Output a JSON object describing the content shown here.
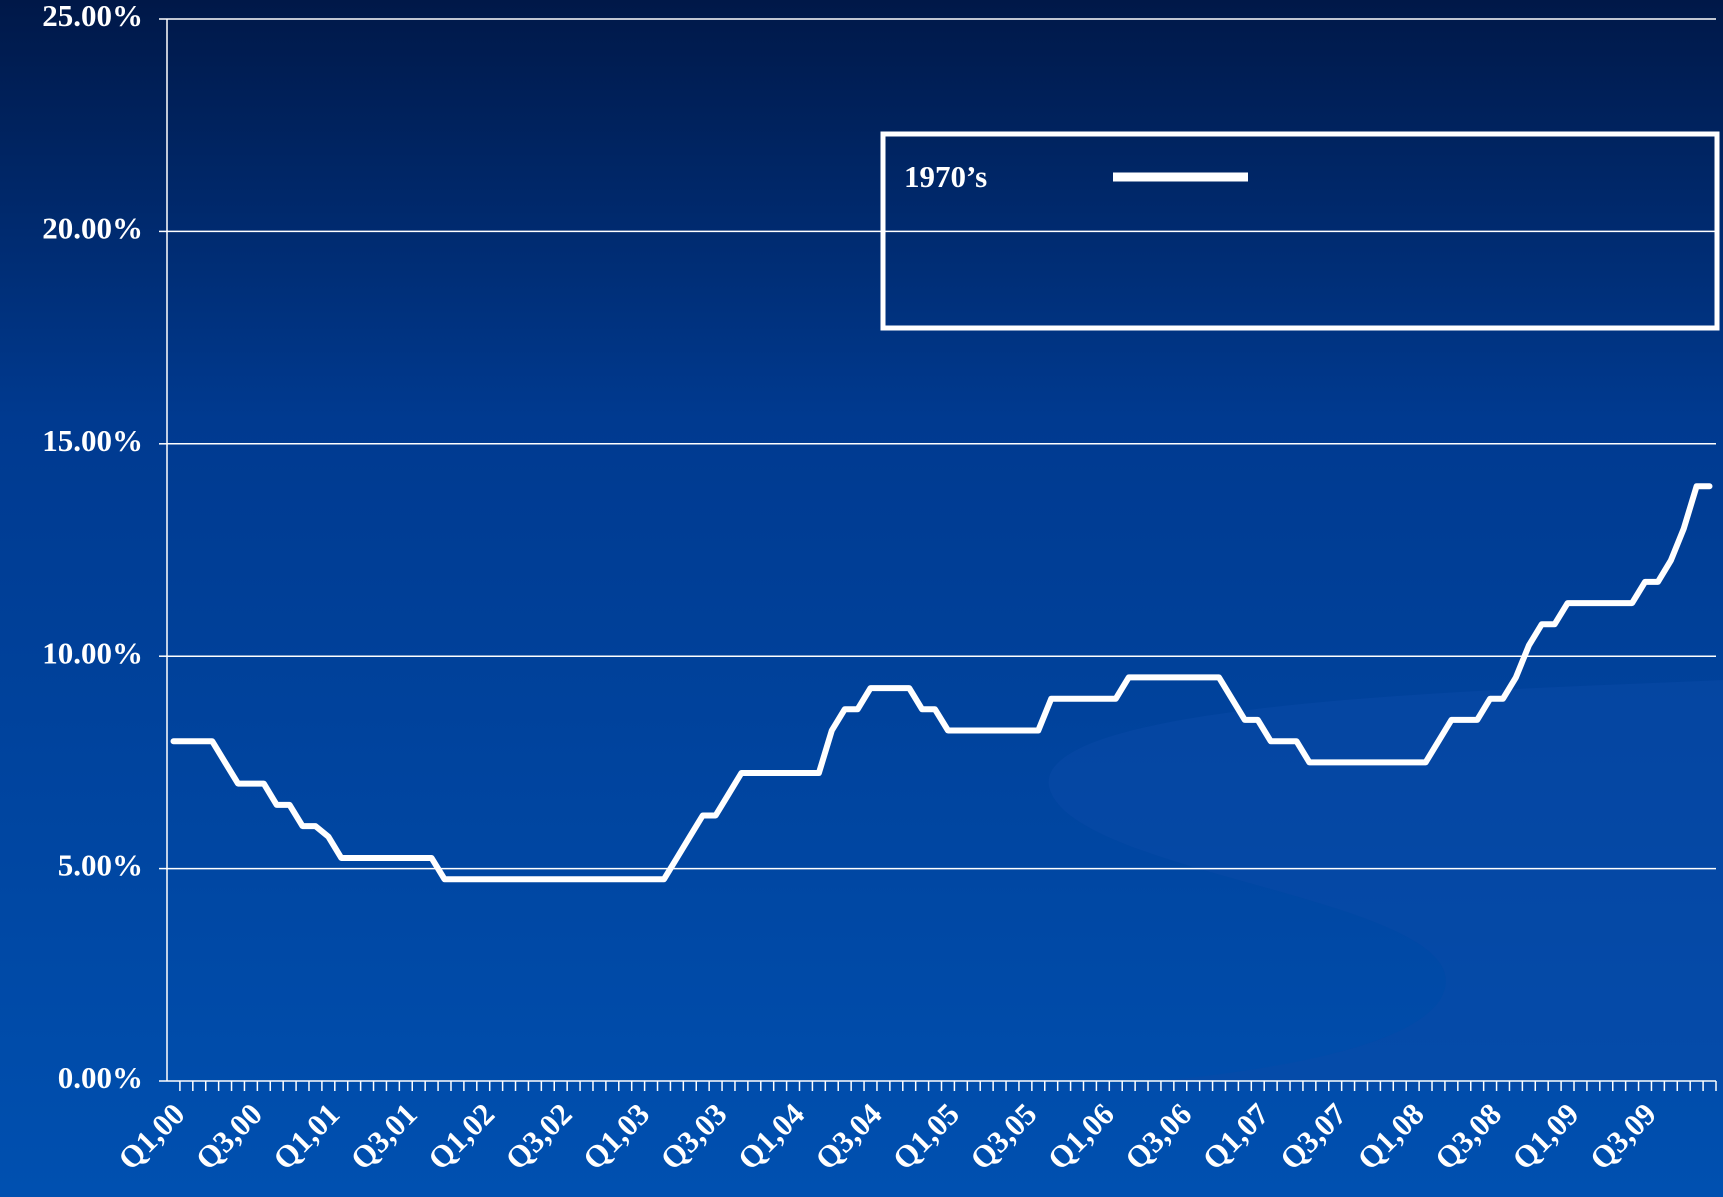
{
  "chart_data": {
    "type": "line",
    "categories": [
      "Q1,00",
      null,
      null,
      null,
      null,
      null,
      "Q3,00",
      null,
      null,
      null,
      null,
      null,
      "Q1,01",
      null,
      null,
      null,
      null,
      null,
      "Q3,01",
      null,
      null,
      null,
      null,
      null,
      "Q1,02",
      null,
      null,
      null,
      null,
      null,
      "Q3,02",
      null,
      null,
      null,
      null,
      null,
      "Q1,03",
      null,
      null,
      null,
      null,
      null,
      "Q3,03",
      null,
      null,
      null,
      null,
      null,
      "Q1,04",
      null,
      null,
      null,
      null,
      null,
      "Q3,04",
      null,
      null,
      null,
      null,
      null,
      "Q1,05",
      null,
      null,
      null,
      null,
      null,
      "Q3,05",
      null,
      null,
      null,
      null,
      null,
      "Q1,06",
      null,
      null,
      null,
      null,
      null,
      "Q3,06",
      null,
      null,
      null,
      null,
      null,
      "Q1,07",
      null,
      null,
      null,
      null,
      null,
      "Q3,07",
      null,
      null,
      null,
      null,
      null,
      "Q1,08",
      null,
      null,
      null,
      null,
      null,
      "Q3,08",
      null,
      null,
      null,
      null,
      null,
      "Q1,09",
      null,
      null,
      null,
      null,
      null,
      "Q3,09",
      null,
      null,
      null,
      null,
      null
    ],
    "series": [
      {
        "name": "1970’s",
        "color": "#ffffff",
        "values": [
          8,
          8,
          8,
          8,
          7.5,
          7,
          7,
          7,
          6.5,
          6.5,
          6,
          6,
          5.75,
          5.25,
          5.25,
          5.25,
          5.25,
          5.25,
          5.25,
          5.25,
          5.25,
          4.75,
          4.75,
          4.75,
          4.75,
          4.75,
          4.75,
          4.75,
          4.75,
          4.75,
          4.75,
          4.75,
          4.75,
          4.75,
          4.75,
          4.75,
          4.75,
          4.75,
          4.75,
          5.25,
          5.75,
          6.25,
          6.25,
          6.75,
          7.25,
          7.25,
          7.25,
          7.25,
          7.25,
          7.25,
          7.25,
          8.25,
          8.75,
          8.75,
          9.25,
          9.25,
          9.25,
          9.25,
          8.75,
          8.75,
          8.25,
          8.25,
          8.25,
          8.25,
          8.25,
          8.25,
          8.25,
          8.25,
          9,
          9,
          9,
          9,
          9,
          9,
          9.5,
          9.5,
          9.5,
          9.5,
          9.5,
          9.5,
          9.5,
          9.5,
          9,
          8.5,
          8.5,
          8,
          8,
          8,
          7.5,
          7.5,
          7.5,
          7.5,
          7.5,
          7.5,
          7.5,
          7.5,
          7.5,
          7.5,
          8,
          8.5,
          8.5,
          8.5,
          9,
          9,
          9.5,
          10.25,
          10.75,
          10.75,
          11.25,
          11.25,
          11.25,
          11.25,
          11.25,
          11.25,
          11.75,
          11.75,
          12.25,
          13,
          14,
          14
        ]
      }
    ],
    "ylim": [
      0,
      25
    ],
    "yticks": [
      {
        "value": 0,
        "label": "0.00%"
      },
      {
        "value": 5,
        "label": "5.00%"
      },
      {
        "value": 10,
        "label": "10.00%"
      },
      {
        "value": 15,
        "label": "15.00%"
      },
      {
        "value": 20,
        "label": "20.00%"
      },
      {
        "value": 25,
        "label": "25.00%"
      }
    ],
    "grid": true,
    "legend": "top-right"
  }
}
